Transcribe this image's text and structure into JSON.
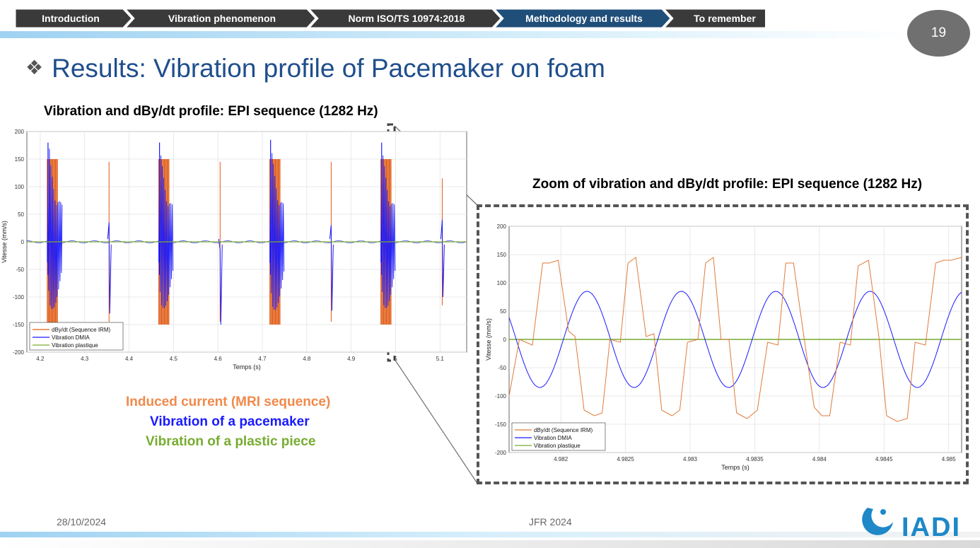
{
  "nav": {
    "items": [
      {
        "label": "Introduction",
        "active": false
      },
      {
        "label": "Vibration phenomenon",
        "active": false
      },
      {
        "label": "Norm ISO/TS 10974:2018",
        "active": false
      },
      {
        "label": "Methodology and results",
        "active": true
      },
      {
        "label": "To remember",
        "active": false
      }
    ]
  },
  "page_number": "19",
  "title": "Results: Vibration profile of Pacemaker on foam",
  "subtitle_main": "Vibration and dBy/dt profile: EPI sequence (1282 Hz)",
  "subtitle_zoom": "Zoom of vibration and dBy/dt profile: EPI sequence (1282 Hz)",
  "legend_text": {
    "induced": "Induced current (MRI sequence)",
    "pacemaker": "Vibration of a pacemaker",
    "plastic": "Vibration of a plastic piece"
  },
  "footer": {
    "date": "28/10/2024",
    "event": "JFR 2024"
  },
  "logo_text": "IADI",
  "colors": {
    "induced": "#e07b39",
    "induced_fill": "#e05a12",
    "pacemaker": "#1a1aff",
    "plastic": "#77ac30",
    "title": "#1f4e8c",
    "nav_dark": "#1f3864",
    "nav_active": "#1f4e79"
  },
  "chart_data": [
    {
      "type": "line",
      "xlabel": "Temps (s)",
      "ylabel": "Vitesse (mm/s)",
      "xlim": [
        4.17,
        5.16
      ],
      "ylim": [
        -200,
        200
      ],
      "x_ticks": [
        4.2,
        4.3,
        4.4,
        4.5,
        4.6,
        4.7,
        4.8,
        4.9,
        5,
        5.1
      ],
      "y_ticks": [
        -200,
        -150,
        -100,
        -50,
        0,
        50,
        100,
        150,
        200
      ],
      "grid": true,
      "legend_position": "bottom-left",
      "series": [
        {
          "name": "dBy/dt (Sequence IRM)",
          "color": "#e05a12",
          "bursts": [
            [
              4.216,
              4.24
            ],
            [
              4.467,
              4.49
            ],
            [
              4.717,
              4.74
            ],
            [
              4.967,
              4.99
            ]
          ],
          "amplitude": 150,
          "spikes": [
            {
              "x": 4.355,
              "y": 145
            },
            {
              "x": 4.605,
              "y": 145
            },
            {
              "x": 4.855,
              "y": 145
            },
            {
              "x": 5.105,
              "y": 115
            }
          ]
        },
        {
          "name": "Vibration DMIA",
          "color": "#1a1aff",
          "bursts": [
            [
              4.216,
              4.25
            ],
            [
              4.467,
              4.5
            ],
            [
              4.717,
              4.75
            ],
            [
              4.967,
              5.0
            ]
          ],
          "peaks": [
            180,
            180,
            185,
            180
          ],
          "spikes": [
            {
              "x": 4.355,
              "y": 35,
              "min": -130
            },
            {
              "x": 4.605,
              "y": -15,
              "min": -150
            },
            {
              "x": 4.855,
              "y": 30,
              "min": -125
            },
            {
              "x": 5.105,
              "y": 40,
              "min": -100
            }
          ]
        },
        {
          "name": "Vibration plastique",
          "color": "#77ac30",
          "values_const": 0
        }
      ]
    },
    {
      "type": "line",
      "xlabel": "Temps (s)",
      "ylabel": "Vitesse (mm/s)",
      "xlim": [
        4.9816,
        4.9851
      ],
      "ylim": [
        -200,
        200
      ],
      "x_ticks": [
        4.982,
        4.9825,
        4.983,
        4.9835,
        4.984,
        4.9845,
        4.985
      ],
      "y_ticks": [
        -200,
        -150,
        -100,
        -50,
        0,
        50,
        100,
        150,
        200
      ],
      "grid": true,
      "legend_position": "bottom-left",
      "series": [
        {
          "name": "dBy/dt (Sequence IRM)",
          "color": "#e07b39",
          "x": [
            4.9816,
            4.98168,
            4.98178,
            4.98186,
            4.98191,
            4.98198,
            4.98206,
            4.98211,
            4.98218,
            4.98226,
            4.98232,
            4.98238,
            4.98246,
            4.98252,
            4.98258,
            4.98266,
            4.98272,
            4.98278,
            4.98286,
            4.98292,
            4.98298,
            4.98306,
            4.98312,
            4.98318,
            4.98324,
            4.9833,
            4.98336,
            4.98344,
            4.98352,
            4.9836,
            4.98368,
            4.98374,
            4.9838,
            4.98388,
            4.98396,
            4.98402,
            4.98408,
            4.98416,
            4.98424,
            4.9843,
            4.98438,
            4.98446,
            4.98452,
            4.9846,
            4.98468,
            4.98474,
            4.98482,
            4.9849,
            4.98496,
            4.98502,
            4.9851
          ],
          "values": [
            -100,
            0,
            -10,
            135,
            135,
            140,
            15,
            5,
            -125,
            -135,
            -130,
            0,
            -5,
            135,
            145,
            5,
            10,
            -125,
            -135,
            -125,
            -5,
            0,
            135,
            145,
            0,
            0,
            -130,
            -140,
            -125,
            -5,
            -10,
            135,
            135,
            5,
            -120,
            -135,
            -135,
            -5,
            -10,
            130,
            140,
            5,
            -135,
            -145,
            -140,
            -5,
            -10,
            135,
            140,
            140,
            145
          ]
        },
        {
          "name": "Vibration DMIA",
          "color": "#1a1aff",
          "model": "sine",
          "amplitude": 85,
          "period": 0.00073,
          "phase_zero_cross": 4.98202
        },
        {
          "name": "Vibration plastique",
          "color": "#77ac30",
          "values_const": 0
        }
      ]
    }
  ]
}
